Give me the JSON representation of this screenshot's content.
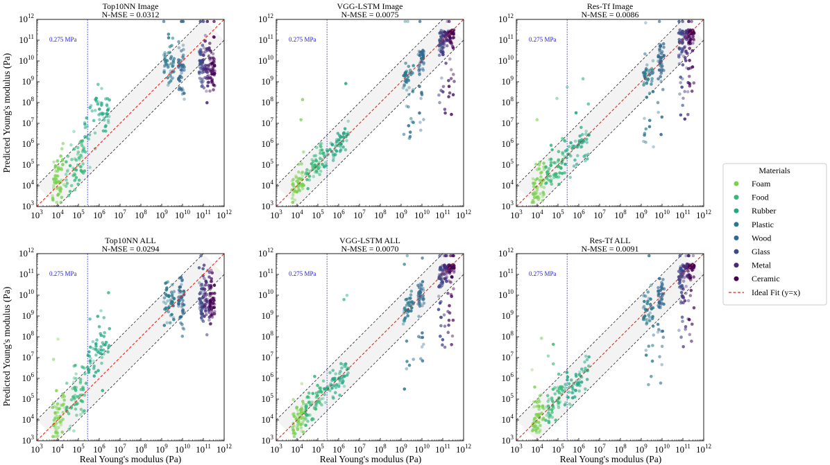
{
  "figure": {
    "y_axis_label": "Predicted Young's modulus (Pa)",
    "x_axis_label": "Real Young's modulus (Pa)",
    "reference_line_label": "0.275 MPa",
    "legend": {
      "title": "Materials",
      "placement": "center-right",
      "ideal_fit_label": "Ideal Fit (y=x)"
    }
  },
  "chart_data": {
    "type": "scatter",
    "x_scale": "log10",
    "y_scale": "log10",
    "xlim_exp": [
      3,
      12
    ],
    "ylim_exp": [
      3,
      12
    ],
    "tick_base": "10",
    "tick_exponents": [
      3,
      4,
      5,
      6,
      7,
      8,
      9,
      10,
      11,
      12
    ],
    "reference_line_mpa": 0.275,
    "band_decades": 1,
    "grid": false,
    "materials": [
      {
        "name": "Foam",
        "color": "#7ad151",
        "log10_x_range": [
          3.75,
          4.35
        ]
      },
      {
        "name": "Food",
        "color": "#37b878",
        "log10_x_range": [
          4.4,
          5.3
        ]
      },
      {
        "name": "Rubber",
        "color": "#22a884",
        "log10_x_range": [
          5.3,
          6.5
        ]
      },
      {
        "name": "Plastic",
        "color": "#2a788e",
        "log10_x_range": [
          9.1,
          9.6
        ]
      },
      {
        "name": "Wood",
        "color": "#31688e",
        "log10_x_range": [
          9.8,
          10.1
        ]
      },
      {
        "name": "Glass",
        "color": "#3e4a89",
        "log10_x_range": [
          10.8,
          11.0
        ]
      },
      {
        "name": "Metal",
        "color": "#482878",
        "log10_x_range": [
          11.0,
          11.3
        ]
      },
      {
        "name": "Ceramic",
        "color": "#440154",
        "log10_x_range": [
          11.3,
          11.55
        ]
      }
    ],
    "panels": [
      {
        "id": "top10nn-image",
        "title": "Top10NN Image",
        "metric": "N-MSE = 0.0312"
      },
      {
        "id": "vgg-lstm-image",
        "title": "VGG-LSTM Image",
        "metric": "N-MSE = 0.0075"
      },
      {
        "id": "res-tf-image",
        "title": "Res-Tf Image",
        "metric": "N-MSE = 0.0086"
      },
      {
        "id": "top10nn-all",
        "title": "Top10NN ALL",
        "metric": "N-MSE = 0.0294"
      },
      {
        "id": "vgg-lstm-all",
        "title": "VGG-LSTM ALL",
        "metric": "N-MSE = 0.0070"
      },
      {
        "id": "res-tf-all",
        "title": "Res-Tf ALL",
        "metric": "N-MSE = 0.0091"
      }
    ]
  }
}
